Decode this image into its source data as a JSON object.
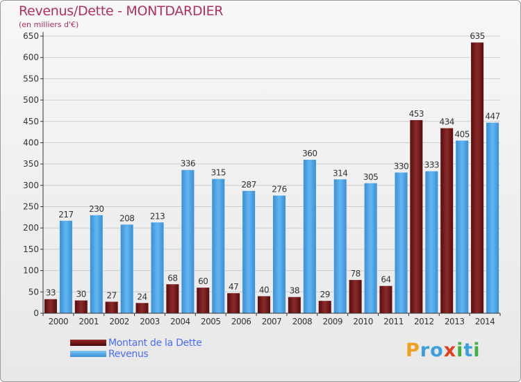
{
  "chart_data": {
    "type": "bar",
    "title": "Revenus/Dette - MONTDARDIER",
    "subtitle": "(en milliers d'€)",
    "categories": [
      "2000",
      "2001",
      "2002",
      "2003",
      "2004",
      "2005",
      "2006",
      "2007",
      "2008",
      "2009",
      "2010",
      "2011",
      "2012",
      "2013",
      "2014"
    ],
    "series": [
      {
        "name": "Montant de la Dette",
        "color": "#7a1a1a",
        "values": [
          33,
          30,
          27,
          24,
          68,
          60,
          47,
          40,
          38,
          29,
          78,
          64,
          453,
          434,
          635
        ]
      },
      {
        "name": "Revenus",
        "color": "#4aa3e8",
        "values": [
          217,
          230,
          208,
          213,
          336,
          315,
          287,
          276,
          360,
          314,
          305,
          330,
          333,
          405,
          447
        ]
      }
    ],
    "ylim": [
      0,
      650
    ],
    "yticks": [
      0,
      50,
      100,
      150,
      200,
      250,
      300,
      350,
      400,
      450,
      500,
      550,
      600,
      650
    ],
    "grid": true,
    "legend_position": "bottom-left"
  },
  "branding": {
    "logo_text": "Proxiti",
    "letters": [
      "P",
      "r",
      "o",
      "x",
      "i",
      "t",
      "i"
    ],
    "letter_colors": [
      "#f0a020",
      "#3aa0e0",
      "#3aa0e0",
      "#e04020",
      "#40b040",
      "#3aa0e0",
      "#40b040"
    ]
  },
  "colors": {
    "axis": "#333333",
    "grid": "#cccccc",
    "label": "#333333",
    "title": "#b03060"
  }
}
